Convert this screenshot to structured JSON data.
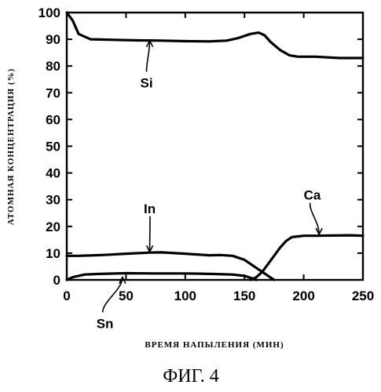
{
  "figure_caption": "ФИГ. 4",
  "chart_data": {
    "type": "line",
    "xlabel": "ВРЕМЯ НАПЫЛЕНИЯ (МИН)",
    "ylabel": "АТОМНАЯ КОНЦЕНТРАЦИЯ (%)",
    "xlim": [
      0,
      250
    ],
    "ylim": [
      0,
      100
    ],
    "x_ticks": [
      "0",
      "50",
      "100",
      "150",
      "200",
      "250"
    ],
    "y_ticks": [
      "0",
      "10",
      "20",
      "30",
      "40",
      "50",
      "60",
      "70",
      "80",
      "90",
      "100"
    ],
    "grid": false,
    "series": [
      {
        "name": "Si",
        "x": [
          0,
          5,
          10,
          20,
          40,
          60,
          80,
          100,
          120,
          135,
          145,
          155,
          162,
          167,
          172,
          180,
          188,
          195,
          210,
          230,
          250
        ],
        "y": [
          100,
          97,
          92,
          90,
          89.8,
          89.6,
          89.5,
          89.3,
          89.2,
          89.5,
          90.5,
          92,
          92.5,
          91.5,
          89,
          86,
          84,
          83.5,
          83.5,
          83,
          83
        ]
      },
      {
        "name": "In",
        "x": [
          0,
          10,
          30,
          50,
          70,
          80,
          100,
          120,
          130,
          140,
          150,
          160,
          170,
          175
        ],
        "y": [
          9,
          9,
          9.3,
          9.8,
          10.2,
          10.3,
          9.8,
          9.2,
          9.3,
          9,
          7.5,
          4.5,
          1.5,
          0
        ]
      },
      {
        "name": "Sn",
        "x": [
          0,
          5,
          15,
          25,
          50,
          75,
          100,
          125,
          140,
          150,
          155,
          160
        ],
        "y": [
          0,
          1,
          2,
          2.2,
          2.5,
          2.4,
          2.4,
          2.2,
          2,
          1.5,
          0.8,
          0
        ]
      },
      {
        "name": "Ca",
        "x": [
          155,
          160,
          165,
          170,
          175,
          180,
          185,
          190,
          200,
          210,
          225,
          240,
          250
        ],
        "y": [
          0,
          1,
          3,
          6,
          9,
          12,
          14.5,
          16,
          16.5,
          16.5,
          16.6,
          16.7,
          16.5
        ]
      }
    ],
    "annotations": [
      {
        "text": "Si",
        "x": 62,
        "y": 72,
        "arrow_to": [
          70,
          89.5
        ]
      },
      {
        "text": "In",
        "x": 65,
        "y": 25,
        "arrow_to": [
          70,
          10.5
        ]
      },
      {
        "text": "Sn",
        "x": 25,
        "y": -18,
        "arrow_to": [
          47,
          1
        ]
      },
      {
        "text": "Ca",
        "x": 200,
        "y": 30,
        "arrow_to": [
          213,
          17
        ]
      }
    ]
  }
}
